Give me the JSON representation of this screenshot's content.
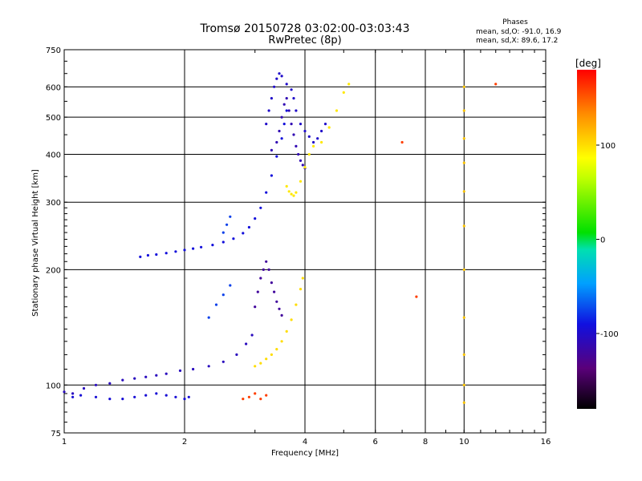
{
  "chart_data": {
    "type": "scatter",
    "title": "Tromsø 20150728 03:02:00-03:03:43",
    "subtitle": "RwPretec (8p)",
    "phase_info": {
      "heading": "Phases",
      "line1": "mean, sd,O: -91.0, 16.9",
      "line2": "mean, sd,X:  89.6, 17.2"
    },
    "xlabel": "Frequency [MHz]",
    "ylabel": "Stationary phase Virtual Height [km]",
    "x_scale": "log",
    "y_scale": "log",
    "xlim": [
      1,
      16
    ],
    "ylim": [
      75,
      750
    ],
    "x_ticks": [
      1,
      2,
      4,
      6,
      8,
      10,
      16
    ],
    "x_tick_labels": [
      "1",
      "2",
      "4",
      "6",
      "8",
      "10",
      "16"
    ],
    "y_ticks": [
      75,
      100,
      200,
      300,
      400,
      500,
      600,
      750
    ],
    "y_tick_labels": [
      "75",
      "100",
      "200",
      "300",
      "400",
      "500",
      "600",
      "750"
    ],
    "x_gridlines": [
      2,
      4,
      6,
      8,
      10
    ],
    "y_gridlines": [
      100,
      200,
      300,
      400,
      500,
      600
    ],
    "colorbar": {
      "label": "[deg]",
      "range": [
        -180,
        180
      ],
      "ticks": [
        100,
        0,
        -100
      ],
      "tick_labels": [
        "100",
        "0",
        "-100"
      ]
    },
    "traces": [
      {
        "phase": -105,
        "points": [
          [
            1.0,
            96
          ],
          [
            1.05,
            95
          ],
          [
            1.12,
            98
          ],
          [
            1.2,
            100
          ],
          [
            1.3,
            101
          ],
          [
            1.4,
            103
          ],
          [
            1.5,
            104
          ],
          [
            1.6,
            105
          ],
          [
            1.7,
            106
          ],
          [
            1.8,
            107
          ],
          [
            1.95,
            109
          ],
          [
            2.1,
            110
          ],
          [
            2.3,
            112
          ],
          [
            2.5,
            115
          ],
          [
            2.7,
            120
          ],
          [
            2.85,
            128
          ],
          [
            2.95,
            135
          ]
        ]
      },
      {
        "phase": -95,
        "points": [
          [
            1.05,
            93
          ],
          [
            1.1,
            94
          ],
          [
            1.2,
            93
          ],
          [
            1.3,
            92
          ],
          [
            1.4,
            92
          ],
          [
            1.5,
            93
          ],
          [
            1.6,
            94
          ],
          [
            1.7,
            95
          ],
          [
            1.8,
            94
          ],
          [
            1.9,
            93
          ],
          [
            2.0,
            92
          ],
          [
            2.05,
            93
          ]
        ]
      },
      {
        "phase": -92,
        "points": [
          [
            1.55,
            216
          ],
          [
            1.62,
            218
          ],
          [
            1.7,
            219
          ],
          [
            1.8,
            221
          ],
          [
            1.9,
            223
          ],
          [
            2.0,
            225
          ],
          [
            2.1,
            227
          ],
          [
            2.2,
            229
          ],
          [
            2.35,
            232
          ],
          [
            2.5,
            236
          ],
          [
            2.65,
            241
          ],
          [
            2.8,
            249
          ],
          [
            2.9,
            258
          ],
          [
            3.0,
            272
          ],
          [
            3.1,
            290
          ],
          [
            3.2,
            318
          ],
          [
            3.3,
            352
          ],
          [
            3.4,
            395
          ],
          [
            3.5,
            440
          ],
          [
            3.55,
            480
          ],
          [
            3.6,
            520
          ]
        ]
      },
      {
        "phase": -100,
        "points": [
          [
            3.2,
            480
          ],
          [
            3.25,
            520
          ],
          [
            3.3,
            560
          ],
          [
            3.35,
            600
          ],
          [
            3.4,
            630
          ],
          [
            3.45,
            650
          ],
          [
            3.5,
            640
          ],
          [
            3.6,
            610
          ],
          [
            3.7,
            590
          ],
          [
            3.75,
            560
          ],
          [
            3.8,
            520
          ],
          [
            3.9,
            480
          ],
          [
            4.0,
            460
          ],
          [
            4.1,
            445
          ],
          [
            4.2,
            430
          ],
          [
            4.3,
            440
          ],
          [
            4.4,
            460
          ],
          [
            4.5,
            480
          ]
        ]
      },
      {
        "phase": -110,
        "points": [
          [
            3.3,
            410
          ],
          [
            3.4,
            430
          ],
          [
            3.45,
            460
          ],
          [
            3.5,
            500
          ],
          [
            3.55,
            540
          ],
          [
            3.6,
            560
          ],
          [
            3.65,
            520
          ],
          [
            3.7,
            480
          ],
          [
            3.75,
            450
          ],
          [
            3.8,
            420
          ],
          [
            3.85,
            400
          ],
          [
            3.9,
            385
          ],
          [
            3.95,
            375
          ],
          [
            4.0,
            368
          ]
        ]
      },
      {
        "phase": -120,
        "points": [
          [
            3.0,
            160
          ],
          [
            3.05,
            175
          ],
          [
            3.1,
            190
          ],
          [
            3.15,
            200
          ],
          [
            3.2,
            210
          ],
          [
            3.25,
            200
          ],
          [
            3.3,
            185
          ],
          [
            3.35,
            175
          ],
          [
            3.4,
            165
          ],
          [
            3.45,
            158
          ],
          [
            3.5,
            152
          ]
        ]
      },
      {
        "phase": -75,
        "points": [
          [
            2.3,
            150
          ],
          [
            2.4,
            162
          ],
          [
            2.5,
            172
          ],
          [
            2.6,
            182
          ],
          [
            2.5,
            250
          ],
          [
            2.55,
            262
          ],
          [
            2.6,
            275
          ]
        ]
      },
      {
        "phase": 95,
        "points": [
          [
            3.6,
            330
          ],
          [
            3.65,
            320
          ],
          [
            3.7,
            315
          ],
          [
            3.75,
            312
          ],
          [
            3.8,
            318
          ],
          [
            3.9,
            340
          ],
          [
            4.0,
            370
          ],
          [
            4.1,
            400
          ],
          [
            4.2,
            420
          ],
          [
            4.4,
            430
          ],
          [
            4.6,
            470
          ],
          [
            4.8,
            520
          ],
          [
            5.0,
            580
          ],
          [
            5.15,
            610
          ]
        ]
      },
      {
        "phase": 100,
        "points": [
          [
            3.0,
            112
          ],
          [
            3.1,
            114
          ],
          [
            3.2,
            117
          ],
          [
            3.3,
            120
          ],
          [
            3.4,
            124
          ],
          [
            3.5,
            130
          ],
          [
            3.6,
            138
          ],
          [
            3.7,
            148
          ],
          [
            3.8,
            162
          ],
          [
            3.9,
            178
          ],
          [
            3.95,
            190
          ]
        ]
      },
      {
        "phase": 110,
        "points": [
          [
            10.0,
            90
          ],
          [
            10.0,
            100
          ],
          [
            10.0,
            120
          ],
          [
            10.0,
            150
          ],
          [
            10.0,
            200
          ],
          [
            10.0,
            260
          ],
          [
            10.0,
            320
          ],
          [
            10.0,
            380
          ],
          [
            10.0,
            440
          ],
          [
            10.0,
            520
          ],
          [
            10.0,
            600
          ]
        ]
      },
      {
        "phase": 160,
        "points": [
          [
            2.8,
            92
          ],
          [
            2.9,
            93
          ],
          [
            3.0,
            95
          ],
          [
            3.1,
            92
          ],
          [
            3.2,
            94
          ],
          [
            7.0,
            430
          ],
          [
            7.6,
            170
          ],
          [
            12.0,
            610
          ]
        ]
      }
    ]
  }
}
